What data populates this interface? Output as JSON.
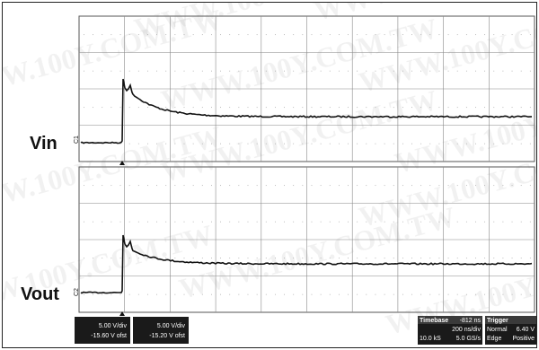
{
  "signals": {
    "top_label": "Vin",
    "bottom_label": "Vout"
  },
  "channels": [
    {
      "scale": "5.00 V/div",
      "offset": "-15.60 V ofst"
    },
    {
      "scale": "5.00 V/div",
      "offset": "-15.20 V ofst"
    }
  ],
  "timebase": {
    "title": "Timebase",
    "delay": "-812 ns",
    "scale": "200 ns/div",
    "samples": "10.0 kS",
    "rate": "5.0 GS/s"
  },
  "trigger": {
    "title": "Trigger",
    "mode": "Normal",
    "level": "6.40 V",
    "type": "Edge",
    "slope": "Positive"
  },
  "watermark": "WWW.100Y.COM.TW",
  "colors": {
    "trace": "#111111",
    "grid": "#888888",
    "info_box": "#1a1a1a"
  }
}
